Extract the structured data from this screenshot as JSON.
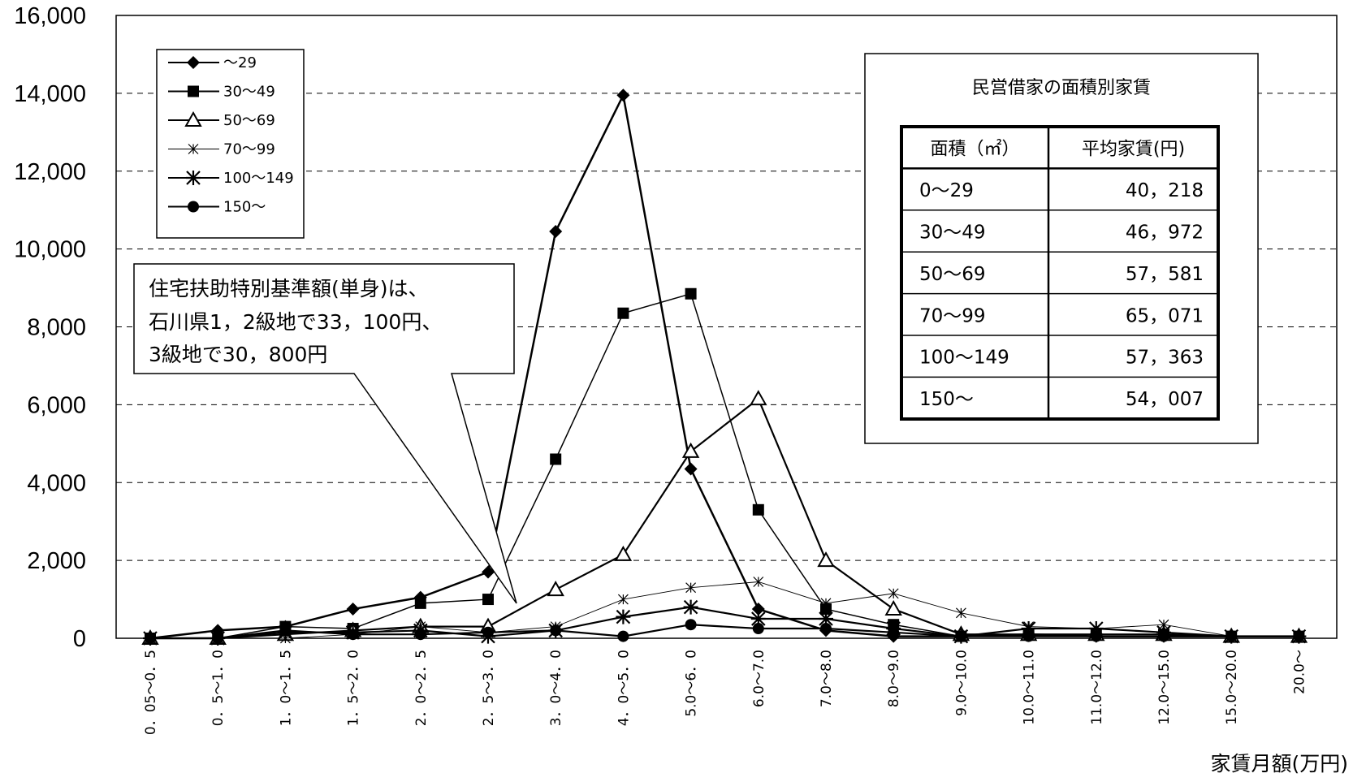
{
  "chart_data": {
    "type": "line",
    "categories": [
      "0．05～0．5",
      "0．5～1．0",
      "1．0～1．5",
      "1．5～2．0",
      "2．0～2．5",
      "2．5～3．0",
      "3．0～4．0",
      "4．0～5．0",
      "5.0～6．0",
      "6.0～7.0",
      "7.0～8.0",
      "8.0～9.0",
      "9.0～10.0",
      "10.0～11.0",
      "11.0～12.0",
      "12.0～15.0",
      "15.0～20.0",
      "20.0～"
    ],
    "yticks": [
      "0",
      "2,000",
      "4,000",
      "6,000",
      "8,000",
      "10,000",
      "12,000",
      "14,000",
      "16,000"
    ],
    "ylim": [
      0,
      16000
    ],
    "xlabel": "家賃月額(万円)",
    "grid": "horizontal dashed",
    "legend_position": "top-left",
    "series": [
      {
        "name": "～29",
        "marker": "diamond",
        "values": [
          0,
          200,
          300,
          750,
          1050,
          1700,
          10450,
          13950,
          4350,
          750,
          200,
          50,
          50,
          100,
          50,
          50,
          50,
          50
        ]
      },
      {
        "name": "30～49",
        "marker": "square",
        "values": [
          0,
          0,
          300,
          250,
          900,
          1000,
          4600,
          8350,
          8850,
          3300,
          750,
          350,
          50,
          100,
          100,
          100,
          50,
          50
        ]
      },
      {
        "name": "50～69",
        "marker": "triangle",
        "values": [
          0,
          0,
          100,
          200,
          300,
          300,
          1250,
          2150,
          4800,
          6150,
          2000,
          750,
          100,
          100,
          100,
          100,
          50,
          50
        ]
      },
      {
        "name": "70～99",
        "marker": "small-star",
        "values": [
          0,
          0,
          0,
          100,
          300,
          150,
          300,
          1000,
          1300,
          1450,
          900,
          1150,
          650,
          300,
          250,
          350,
          50,
          50
        ]
      },
      {
        "name": "100～149",
        "marker": "asterisk",
        "values": [
          0,
          0,
          150,
          150,
          200,
          50,
          200,
          550,
          800,
          500,
          500,
          250,
          50,
          250,
          250,
          150,
          50,
          50
        ]
      },
      {
        "name": "150～",
        "marker": "circle",
        "values": [
          0,
          0,
          200,
          100,
          100,
          150,
          200,
          50,
          350,
          250,
          250,
          150,
          50,
          50,
          50,
          50,
          50,
          50
        ]
      }
    ],
    "callout": {
      "lines": [
        "住宅扶助特別基準額(単身)は、",
        "石川県1，2級地で33，100円、",
        "3級地で30，800円"
      ]
    },
    "table": {
      "title": "民営借家の面積別家賃",
      "header": [
        "面積（㎡）",
        "平均家賃(円)"
      ],
      "rows": [
        [
          "0～29",
          "40，218"
        ],
        [
          "30～49",
          "46，972"
        ],
        [
          "50～69",
          "57，581"
        ],
        [
          "70～99",
          "65，071"
        ],
        [
          "100～149",
          "57，363"
        ],
        [
          "150～",
          "54，007"
        ]
      ]
    }
  }
}
